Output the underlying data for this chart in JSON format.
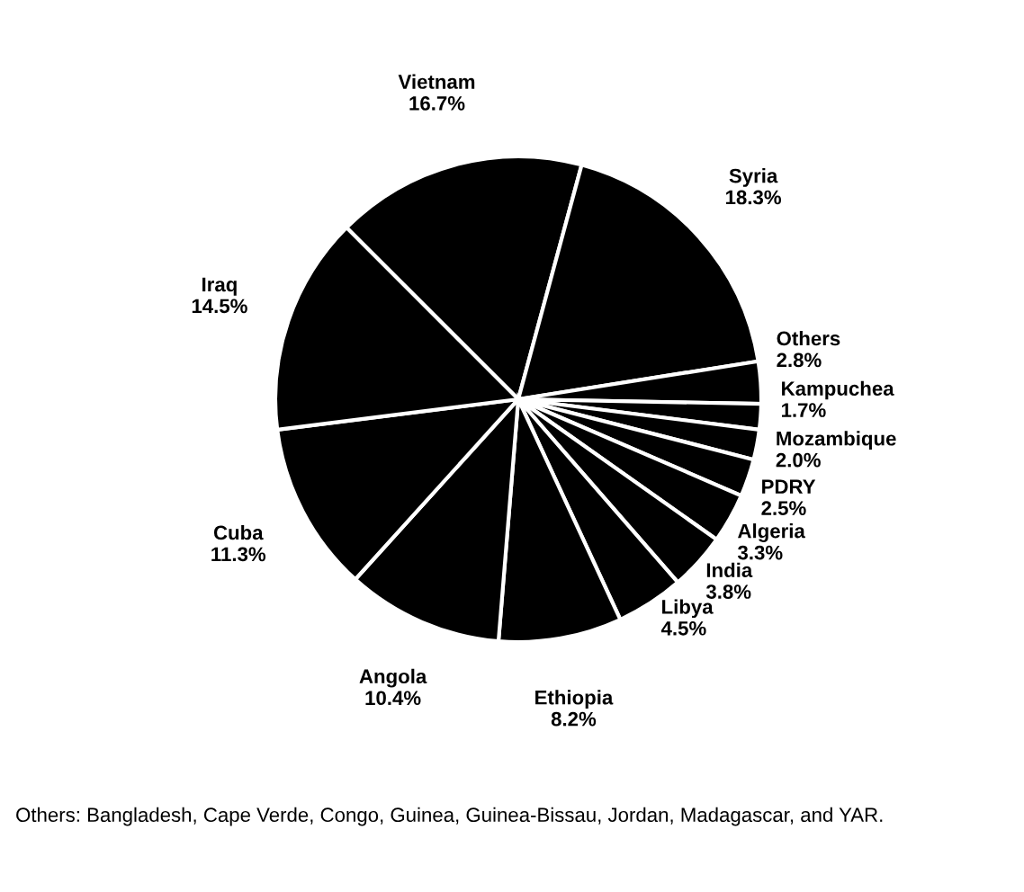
{
  "chart_data": {
    "type": "pie",
    "categories": [
      "Vietnam",
      "Syria",
      "Others",
      "Kampuchea",
      "Mozambique",
      "PDRY",
      "Algeria",
      "India",
      "Libya",
      "Ethiopia",
      "Angola",
      "Cuba",
      "Iraq"
    ],
    "values": [
      16.7,
      18.3,
      2.8,
      1.7,
      2.0,
      2.5,
      3.3,
      3.8,
      4.5,
      8.2,
      10.4,
      11.3,
      14.5
    ],
    "value_labels": [
      "16.7%",
      "18.3%",
      "2.8%",
      "1.7%",
      "2.0%",
      "2.5%",
      "3.3%",
      "3.8%",
      "4.5%",
      "8.2%",
      "10.4%",
      "11.3%",
      "14.5%"
    ],
    "colors": [
      "#000000",
      "#000000",
      "#000000",
      "#000000",
      "#000000",
      "#000000",
      "#000000",
      "#000000",
      "#000000",
      "#000000",
      "#000000",
      "#000000",
      "#000000"
    ],
    "annotations": [
      "Others: Bangladesh, Cape Verde, Congo, Guinea, Guinea-Bissau, Jordan, Madagascar, and YAR."
    ]
  }
}
